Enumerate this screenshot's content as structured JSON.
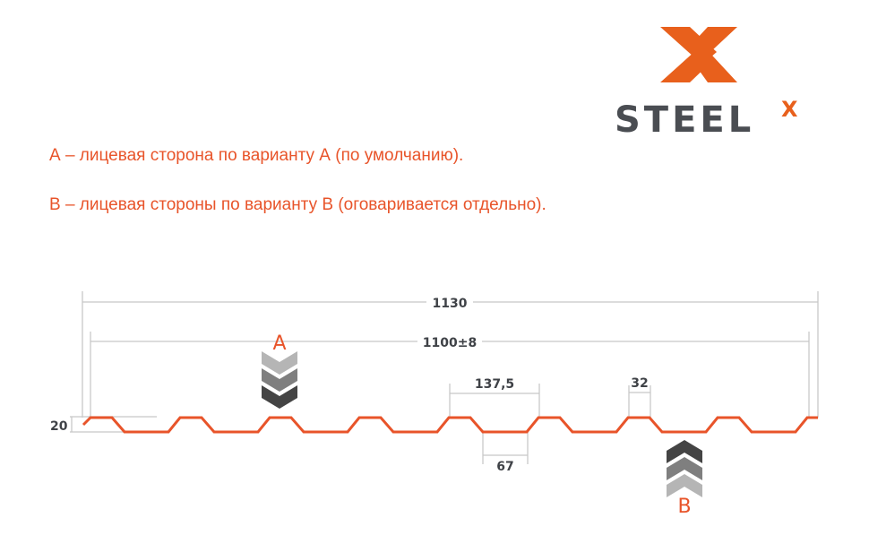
{
  "logo": {
    "text": "STEEL",
    "superscript": "X",
    "brand_color": "#e8601c",
    "text_color": "#4a4d52"
  },
  "notes": [
    "А – лицевая сторона по варианту А (по умолчанию).",
    "В – лицевая стороны по варианту В (оговаривается отдельно)."
  ],
  "dimensions": {
    "total_width": "1130",
    "useful_width": "1100±8",
    "pitch": "137,5",
    "crest_width": "32",
    "trough_width": "67",
    "height": "20"
  },
  "side_labels": {
    "a": "A",
    "b": "B"
  },
  "colors": {
    "profile": "#e8542a",
    "dimension_lines": "#c8c8c8",
    "text": "#3f4247"
  }
}
